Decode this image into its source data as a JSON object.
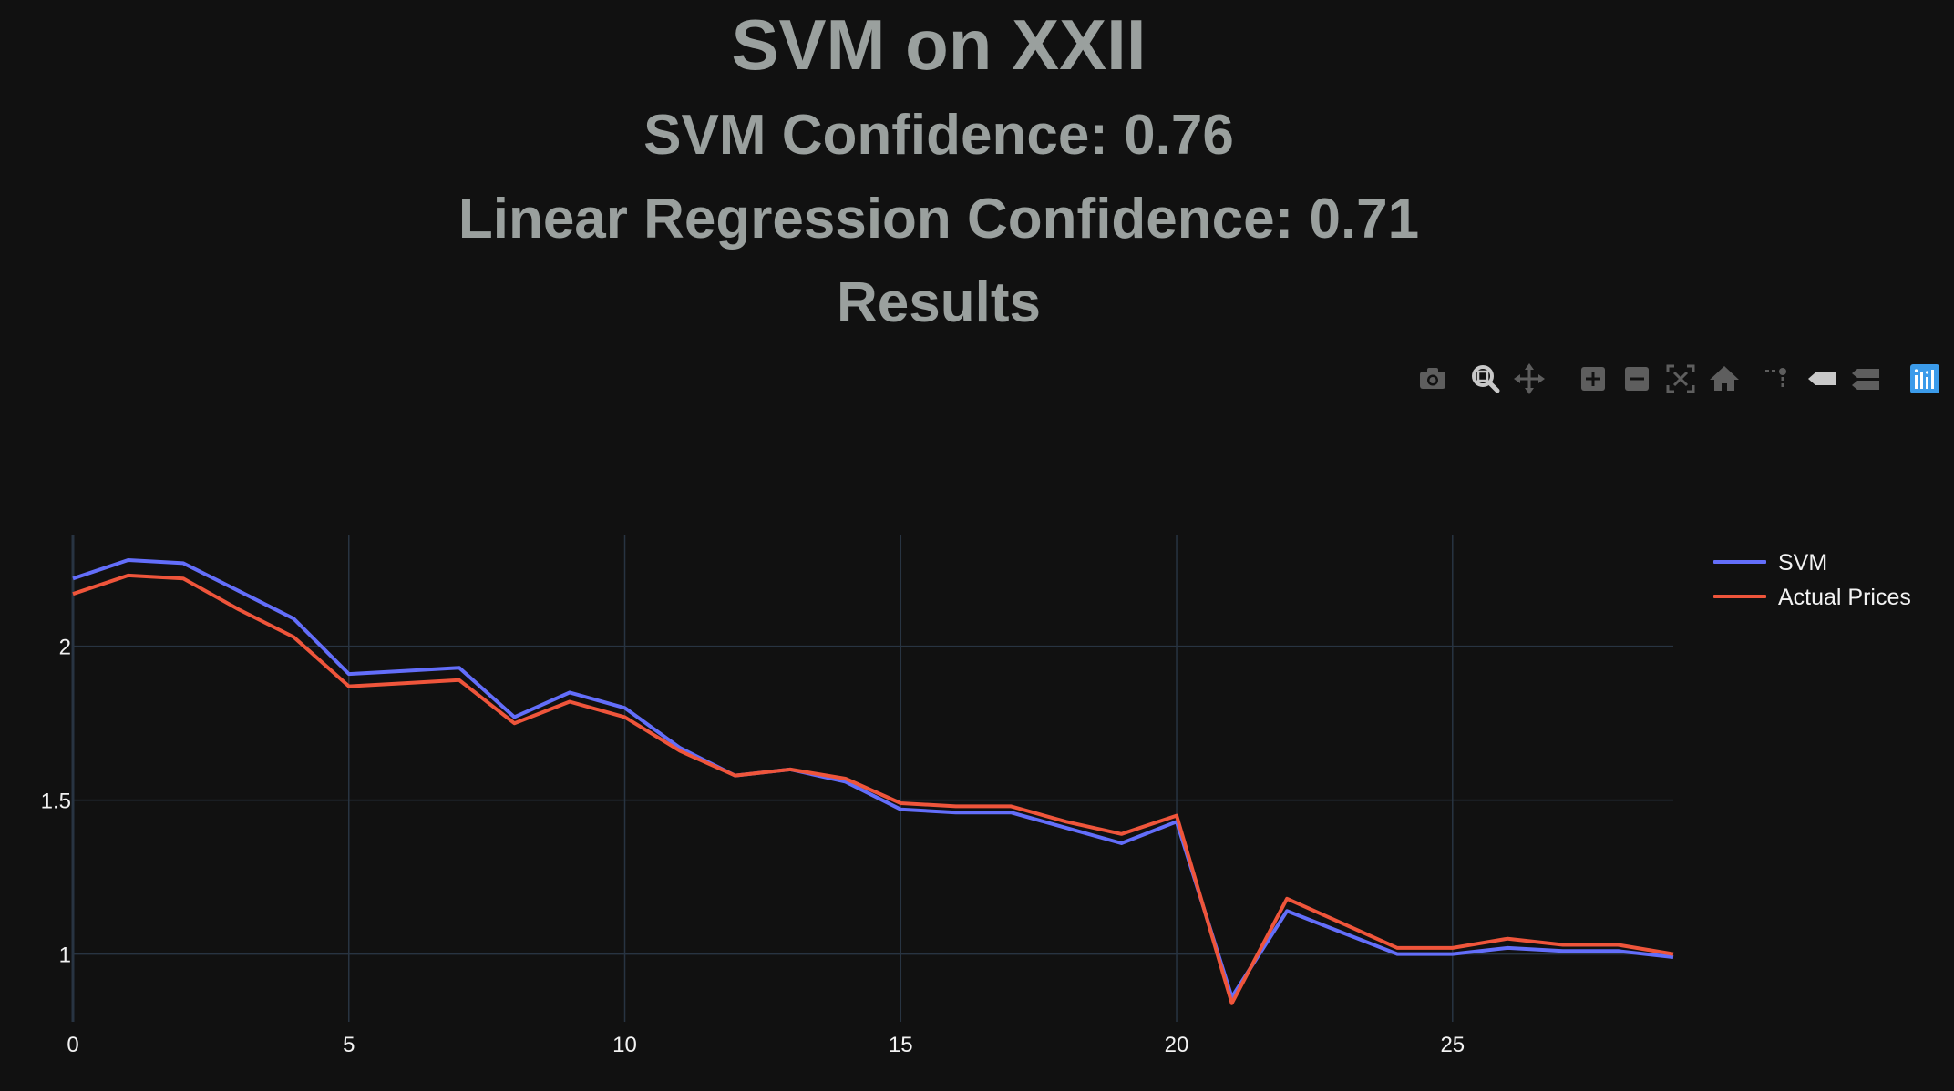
{
  "titles": {
    "main": "SVM on XXII",
    "svm_confidence": "SVM Confidence: 0.76",
    "lr_confidence": "Linear Regression Confidence: 0.71",
    "results": "Results"
  },
  "modebar": [
    {
      "name": "camera-icon"
    },
    {
      "name": "zoom-icon"
    },
    {
      "name": "pan-icon"
    },
    {
      "name": "zoom-in-icon"
    },
    {
      "name": "zoom-out-icon"
    },
    {
      "name": "autoscale-icon"
    },
    {
      "name": "reset-axes-icon"
    },
    {
      "name": "spike-lines-icon"
    },
    {
      "name": "hover-closest-icon"
    },
    {
      "name": "hover-compare-icon"
    },
    {
      "name": "plotly-logo-icon"
    }
  ],
  "colors": {
    "background": "#111111",
    "grid": "#283442",
    "tick_text": "#f2f2f2",
    "title_text": "#9aa09e",
    "modebar_icon": "#5e5e5e",
    "modebar_active": "#c9c9c9",
    "plotly_logo": "#3b9bea"
  },
  "chart_data": {
    "type": "line",
    "title": "",
    "xlabel": "",
    "ylabel": "",
    "xlim": [
      0,
      29
    ],
    "ylim": [
      0.78,
      2.36
    ],
    "x_ticks": [
      0,
      5,
      10,
      15,
      20,
      25
    ],
    "x_tick_labels": [
      "0",
      "5",
      "10",
      "15",
      "20",
      "25"
    ],
    "y_ticks": [
      1,
      1.5,
      2
    ],
    "y_tick_labels": [
      "1",
      "1.5",
      "2"
    ],
    "grid": true,
    "legend_position": "top-right",
    "x": [
      0,
      1,
      2,
      3,
      4,
      5,
      6,
      7,
      8,
      9,
      10,
      11,
      12,
      13,
      14,
      15,
      16,
      17,
      18,
      19,
      20,
      21,
      22,
      23,
      24,
      25,
      26,
      27,
      28,
      29
    ],
    "series": [
      {
        "name": "SVM",
        "color": "#636efa",
        "values": [
          2.22,
          2.28,
          2.27,
          2.18,
          2.09,
          1.91,
          1.92,
          1.93,
          1.77,
          1.85,
          1.8,
          1.67,
          1.58,
          1.6,
          1.56,
          1.47,
          1.46,
          1.46,
          1.41,
          1.36,
          1.43,
          0.86,
          1.14,
          1.07,
          1.0,
          1.0,
          1.02,
          1.01,
          1.01,
          0.99
        ]
      },
      {
        "name": "Actual Prices",
        "color": "#ef553b",
        "values": [
          2.17,
          2.23,
          2.22,
          2.12,
          2.03,
          1.87,
          1.88,
          1.89,
          1.75,
          1.82,
          1.77,
          1.66,
          1.58,
          1.6,
          1.57,
          1.49,
          1.48,
          1.48,
          1.43,
          1.39,
          1.45,
          0.84,
          1.18,
          1.1,
          1.02,
          1.02,
          1.05,
          1.03,
          1.03,
          1.0
        ]
      }
    ]
  }
}
